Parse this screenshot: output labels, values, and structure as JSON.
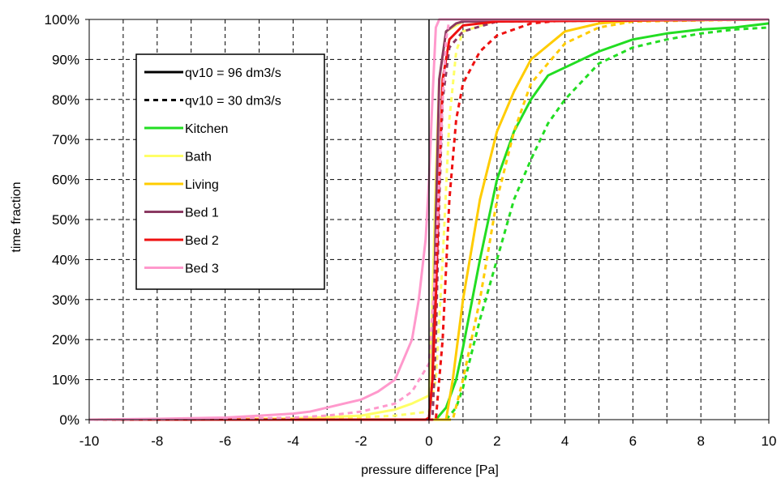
{
  "chart_data": {
    "type": "line",
    "title": "",
    "xlabel": "pressure difference [Pa]",
    "ylabel": "time fraction",
    "xlim": [
      -10,
      10
    ],
    "ylim": [
      0,
      100
    ],
    "x_ticks": [
      "-10",
      "-8",
      "-6",
      "-4",
      "-2",
      "0",
      "2",
      "4",
      "6",
      "8",
      "10"
    ],
    "y_ticks": [
      "0%",
      "10%",
      "20%",
      "30%",
      "40%",
      "50%",
      "60%",
      "70%",
      "80%",
      "90%",
      "100%"
    ],
    "grid": true,
    "legend_position": "top-left",
    "legend": [
      {
        "label": "qv10 = 96 dm3/s",
        "color": "#000000",
        "style": "solid"
      },
      {
        "label": "qv10 = 30 dm3/s",
        "color": "#000000",
        "style": "dashed"
      },
      {
        "label": "Kitchen",
        "color": "#22dd22",
        "style": "solid"
      },
      {
        "label": "Bath",
        "color": "#ffff66",
        "style": "solid"
      },
      {
        "label": "Living",
        "color": "#ffcc00",
        "style": "solid"
      },
      {
        "label": "Bed 1",
        "color": "#8b3a62",
        "style": "solid"
      },
      {
        "label": "Bed 2",
        "color": "#ee1111",
        "style": "solid"
      },
      {
        "label": "Bed 3",
        "color": "#ff99cc",
        "style": "solid"
      }
    ],
    "series": [
      {
        "name": "Kitchen",
        "flow": "qv10 = 96 dm3/s",
        "color": "#22dd22",
        "style": "solid",
        "points": [
          [
            -10,
            0
          ],
          [
            0.2,
            0
          ],
          [
            0.5,
            3
          ],
          [
            0.8,
            10
          ],
          [
            1,
            18
          ],
          [
            1.5,
            40
          ],
          [
            2,
            60
          ],
          [
            2.5,
            72
          ],
          [
            3,
            80
          ],
          [
            3.5,
            86
          ],
          [
            4,
            88
          ],
          [
            5,
            92
          ],
          [
            6,
            95
          ],
          [
            7,
            96.5
          ],
          [
            8,
            97.5
          ],
          [
            9,
            98
          ],
          [
            10,
            99
          ]
        ]
      },
      {
        "name": "Kitchen",
        "flow": "qv10 = 30 dm3/s",
        "color": "#22dd22",
        "style": "dashed",
        "points": [
          [
            -10,
            0
          ],
          [
            0.5,
            0
          ],
          [
            0.8,
            3
          ],
          [
            1,
            8
          ],
          [
            1.5,
            25
          ],
          [
            2,
            40
          ],
          [
            2.5,
            55
          ],
          [
            3,
            65
          ],
          [
            3.5,
            74
          ],
          [
            4,
            80
          ],
          [
            5,
            89
          ],
          [
            6,
            93
          ],
          [
            7,
            95
          ],
          [
            8,
            96.5
          ],
          [
            9,
            97.5
          ],
          [
            10,
            98
          ]
        ]
      },
      {
        "name": "Bath",
        "flow": "qv10 = 96 dm3/s",
        "color": "#ffff66",
        "style": "solid",
        "points": [
          [
            -10,
            0
          ],
          [
            -4,
            0.3
          ],
          [
            -2,
            1
          ],
          [
            -1,
            2.5
          ],
          [
            -0.5,
            4
          ],
          [
            0,
            6
          ],
          [
            0.1,
            30
          ],
          [
            0.2,
            60
          ],
          [
            0.3,
            85
          ],
          [
            0.5,
            97
          ],
          [
            1,
            99.5
          ],
          [
            10,
            100
          ]
        ]
      },
      {
        "name": "Bath",
        "flow": "qv10 = 30 dm3/s",
        "color": "#ffff66",
        "style": "dashed",
        "points": [
          [
            -10,
            0
          ],
          [
            -3,
            0.2
          ],
          [
            -1,
            1
          ],
          [
            0,
            2
          ],
          [
            0.2,
            10
          ],
          [
            0.4,
            40
          ],
          [
            0.6,
            75
          ],
          [
            0.8,
            92
          ],
          [
            1,
            97
          ],
          [
            2,
            99.8
          ],
          [
            10,
            100
          ]
        ]
      },
      {
        "name": "Living",
        "flow": "qv10 = 96 dm3/s",
        "color": "#ffcc00",
        "style": "solid",
        "points": [
          [
            -10,
            0
          ],
          [
            0.5,
            0
          ],
          [
            0.7,
            10
          ],
          [
            1,
            30
          ],
          [
            1.5,
            55
          ],
          [
            2,
            72
          ],
          [
            2.5,
            82
          ],
          [
            3,
            90
          ],
          [
            4,
            97
          ],
          [
            5,
            99
          ],
          [
            6,
            99.7
          ],
          [
            10,
            100
          ]
        ]
      },
      {
        "name": "Living",
        "flow": "qv10 = 30 dm3/s",
        "color": "#ffcc00",
        "style": "dashed",
        "points": [
          [
            -10,
            0
          ],
          [
            0.7,
            0
          ],
          [
            1,
            10
          ],
          [
            1.5,
            30
          ],
          [
            2,
            55
          ],
          [
            2.5,
            72
          ],
          [
            3,
            84
          ],
          [
            4,
            94
          ],
          [
            5,
            98
          ],
          [
            6,
            99.5
          ],
          [
            10,
            100
          ]
        ]
      },
      {
        "name": "Bed 1",
        "flow": "qv10 = 96 dm3/s",
        "color": "#8b3a62",
        "style": "solid",
        "points": [
          [
            -10,
            0
          ],
          [
            0,
            0
          ],
          [
            0.1,
            10
          ],
          [
            0.2,
            50
          ],
          [
            0.3,
            85
          ],
          [
            0.5,
            97
          ],
          [
            0.8,
            99
          ],
          [
            1,
            99.5
          ],
          [
            10,
            100
          ]
        ]
      },
      {
        "name": "Bed 1",
        "flow": "qv10 = 30 dm3/s",
        "color": "#8b3a62",
        "style": "dashed",
        "points": [
          [
            -10,
            0
          ],
          [
            0.1,
            0
          ],
          [
            0.2,
            20
          ],
          [
            0.3,
            55
          ],
          [
            0.4,
            80
          ],
          [
            0.6,
            93
          ],
          [
            1,
            97
          ],
          [
            2,
            99.5
          ],
          [
            10,
            100
          ]
        ]
      },
      {
        "name": "Bed 2",
        "flow": "qv10 = 96 dm3/s",
        "color": "#ee1111",
        "style": "solid",
        "points": [
          [
            -10,
            0
          ],
          [
            -0.1,
            0
          ],
          [
            0,
            0.5
          ],
          [
            0.1,
            10
          ],
          [
            0.2,
            30
          ],
          [
            0.3,
            60
          ],
          [
            0.4,
            85
          ],
          [
            0.6,
            95
          ],
          [
            1,
            98.5
          ],
          [
            2,
            99.5
          ],
          [
            10,
            100
          ]
        ]
      },
      {
        "name": "Bed 2",
        "flow": "qv10 = 30 dm3/s",
        "color": "#ee1111",
        "style": "dashed",
        "points": [
          [
            -10,
            0
          ],
          [
            0.2,
            0
          ],
          [
            0.4,
            20
          ],
          [
            0.6,
            55
          ],
          [
            0.8,
            75
          ],
          [
            1,
            84
          ],
          [
            1.5,
            92
          ],
          [
            2,
            96
          ],
          [
            3,
            99
          ],
          [
            4,
            99.8
          ],
          [
            10,
            100
          ]
        ]
      },
      {
        "name": "Bed 3",
        "flow": "qv10 = 96 dm3/s",
        "color": "#ff99cc",
        "style": "solid",
        "points": [
          [
            -10,
            0
          ],
          [
            -8,
            0.2
          ],
          [
            -6,
            0.5
          ],
          [
            -5,
            1
          ],
          [
            -4,
            1.5
          ],
          [
            -3.5,
            2
          ],
          [
            -3,
            3
          ],
          [
            -2.5,
            4
          ],
          [
            -2,
            5
          ],
          [
            -1.5,
            7
          ],
          [
            -1,
            10
          ],
          [
            -0.5,
            20
          ],
          [
            -0.3,
            30
          ],
          [
            -0.1,
            45
          ],
          [
            0,
            60
          ],
          [
            0.1,
            80
          ],
          [
            0.2,
            98
          ],
          [
            0.3,
            100
          ],
          [
            10,
            100
          ]
        ]
      },
      {
        "name": "Bed 3",
        "flow": "qv10 = 30 dm3/s",
        "color": "#ff99cc",
        "style": "dashed",
        "points": [
          [
            -10,
            0
          ],
          [
            -6,
            0.2
          ],
          [
            -4,
            0.5
          ],
          [
            -3,
            1
          ],
          [
            -2,
            2
          ],
          [
            -1,
            4
          ],
          [
            -0.5,
            7
          ],
          [
            0,
            14
          ],
          [
            0.2,
            40
          ],
          [
            0.4,
            80
          ],
          [
            0.5,
            95
          ],
          [
            0.6,
            100
          ],
          [
            10,
            100
          ]
        ]
      }
    ]
  }
}
